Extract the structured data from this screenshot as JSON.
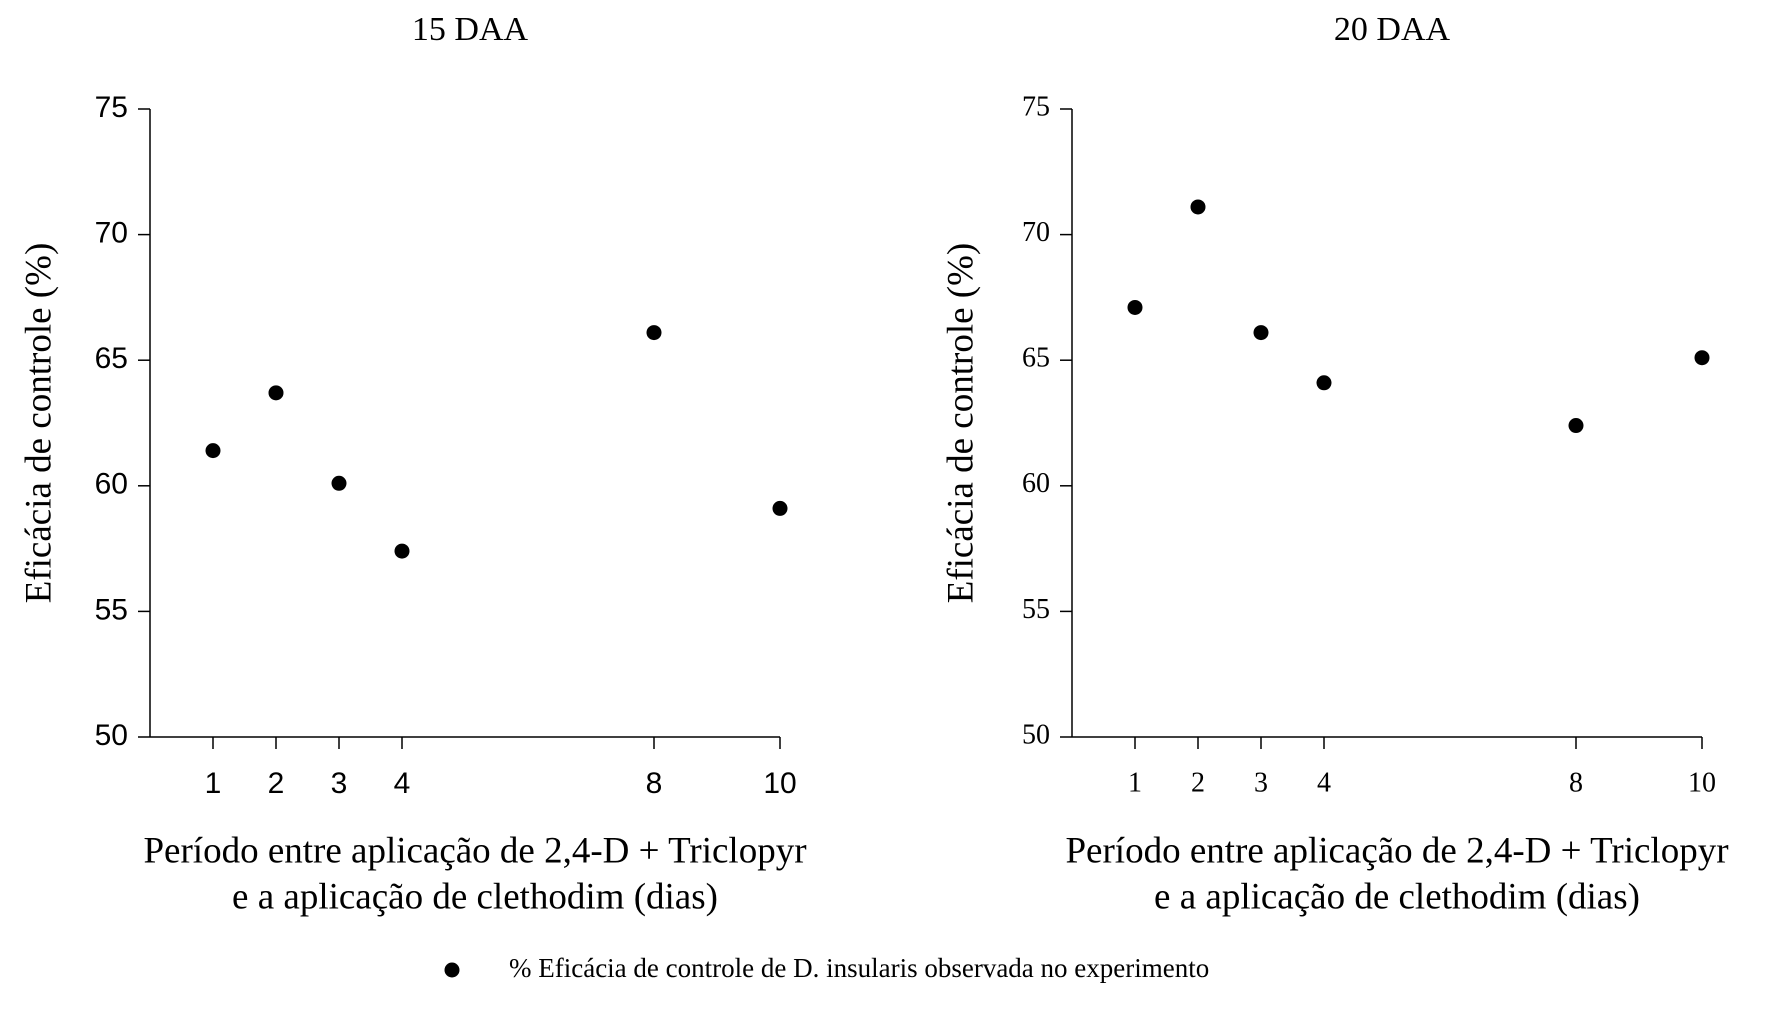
{
  "chart_data": [
    {
      "type": "scatter",
      "title": "15 DAA",
      "xlabel": [
        "Período entre aplicação de 2,4-D + Triclopyr",
        "e a aplicação de clethodim (dias)"
      ],
      "ylabel": "Eficácia de controle (%)",
      "xlim": [
        0,
        10
      ],
      "xticks": [
        1,
        2,
        3,
        4,
        8,
        10
      ],
      "ylim": [
        50,
        75
      ],
      "yticks": [
        50,
        55,
        60,
        65,
        70,
        75
      ],
      "series": [
        {
          "name": "% Eficácia de controle de D. insularis observada no experimento",
          "color": "#000000",
          "x": [
            1,
            2,
            3,
            4,
            8,
            10
          ],
          "values": [
            61.4,
            63.7,
            60.1,
            57.4,
            66.1,
            59.1
          ]
        }
      ]
    },
    {
      "type": "scatter",
      "title": "20 DAA",
      "xlabel": [
        "Período entre aplicação de 2,4-D + Triclopyr",
        "e a aplicação de clethodim (dias)"
      ],
      "ylabel": "Eficácia de controle (%)",
      "xlim": [
        0,
        10
      ],
      "xticks": [
        1,
        2,
        3,
        4,
        8,
        10
      ],
      "ylim": [
        50,
        75
      ],
      "yticks": [
        50,
        55,
        60,
        65,
        70,
        75
      ],
      "series": [
        {
          "color": "#000000",
          "x": [
            1,
            2,
            3,
            4,
            8,
            10
          ],
          "values": [
            67.1,
            71.1,
            66.1,
            64.1,
            62.4,
            65.1
          ]
        }
      ]
    }
  ]
}
